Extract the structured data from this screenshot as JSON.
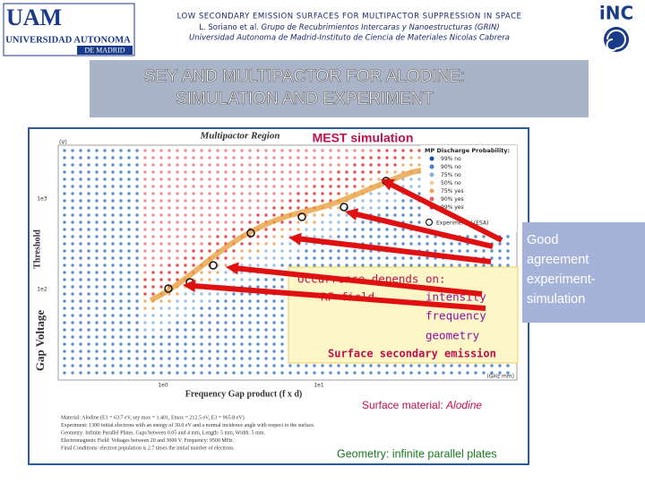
{
  "header": {
    "logo_left": {
      "mark": "UAM",
      "name": "UNIVERSIDAD AUTONOMA",
      "place": "DE MADRID"
    },
    "line1": "LOW SECONDARY EMISSION SURFACES FOR MULTIPACTOR SUPPRESSION IN SPACE",
    "line2_authors": "L. Soriano et al.",
    "line2_group": "Grupo de Recubrimientos Intercaras y Nanoestructuras (GRIN)",
    "line3": "Universidad Autonoma de Madrid-Instituto de Ciencia de Materiales Nicolas Cabrera",
    "logo_right": "iNC"
  },
  "title": [
    "SEY AND MULTIPACTOR FOR ALODINE:",
    "SIMULATION AND EXPERIMENT"
  ],
  "figure": {
    "plot_title": "Multipactor Region",
    "sim_title": "MEST simulation",
    "y_unit": "(V)",
    "y_label": "Gap Voltage",
    "y_label_sub": "Threshold",
    "y_ticks": [
      "1e3",
      "1e2"
    ],
    "x_ticks": [
      "1e0",
      "1e1"
    ],
    "x_unit": "(GHz mm)",
    "x_label": "Frequency Gap product (f x d)",
    "legend_title": "MP Discharge Probability:",
    "legend": [
      "99% no",
      "90% no",
      "75% no",
      "50% no",
      "75% yes",
      "90% yes",
      "99% yes"
    ],
    "legend_experimental": "Experimental (ESA)",
    "occurrence": {
      "heading": "Occurrence depends on:",
      "items": [
        "RF field",
        "intensity",
        "frequency",
        "geometry"
      ],
      "footer": "Surface secondary emission"
    },
    "surface_label": "Surface material:",
    "surface_material": "Alodine",
    "description": [
      "Material: Alodine (E1 = 63.7 eV, sey max = 1.401, Emax = 212.5 eV, E3 = 965.8 eV).",
      "Experiment: 1300 initial electrons with an energy of 30.0 eV and a normal incidence angle with respect to the surface.",
      "Geometry: Infinite Parallel Plates. Gaps between 0.05 and 4 mm, Length: 5 mm, Width: 5 mm.",
      "Electromagnetic Field: Voltages between 20 and 3000 V. Frequency: 9500 MHz.",
      "Final Conditions: electron population is 2.7 times the initial number of electrons."
    ],
    "geometry": "Geometry: infinite parallel plates"
  },
  "callout": [
    "Good",
    "agreement",
    "experiment-",
    "simulation"
  ]
}
